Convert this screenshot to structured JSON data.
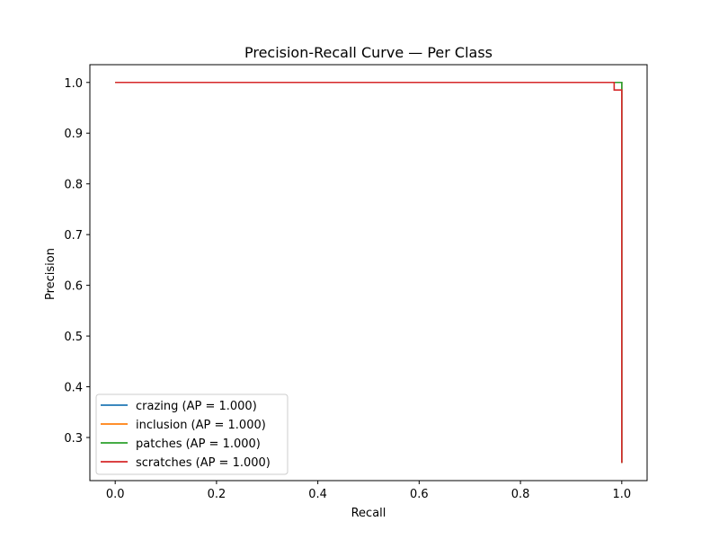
{
  "chart_data": {
    "type": "line",
    "title": "Precision-Recall Curve — Per Class",
    "xlabel": "Recall",
    "ylabel": "Precision",
    "xlim": [
      -0.05,
      1.05
    ],
    "ylim": [
      0.215,
      1.035
    ],
    "xticks": [
      0.0,
      0.2,
      0.4,
      0.6,
      0.8,
      1.0
    ],
    "xtick_labels": [
      "0.0",
      "0.2",
      "0.4",
      "0.6",
      "0.8",
      "1.0"
    ],
    "yticks": [
      0.3,
      0.4,
      0.5,
      0.6,
      0.7,
      0.8,
      0.9,
      1.0
    ],
    "ytick_labels": [
      "0.3",
      "0.4",
      "0.5",
      "0.6",
      "0.7",
      "0.8",
      "0.9",
      "1.0"
    ],
    "grid": false,
    "legend_position": "lower-left",
    "series": [
      {
        "name": "crazing (AP = 1.000)",
        "color": "#1f77b4",
        "x": [
          0.0,
          1.0,
          1.0
        ],
        "y": [
          1.0,
          1.0,
          0.25
        ]
      },
      {
        "name": "inclusion (AP = 1.000)",
        "color": "#ff7f0e",
        "x": [
          0.0,
          1.0,
          1.0
        ],
        "y": [
          1.0,
          1.0,
          0.25
        ]
      },
      {
        "name": "patches (AP = 1.000)",
        "color": "#2ca02c",
        "x": [
          0.0,
          1.0,
          1.0
        ],
        "y": [
          1.0,
          1.0,
          0.25
        ]
      },
      {
        "name": "scratches (AP = 1.000)",
        "color": "#d62728",
        "x": [
          0.0,
          0.985,
          0.985,
          1.0,
          1.0
        ],
        "y": [
          1.0,
          1.0,
          0.985,
          0.985,
          0.25
        ]
      }
    ]
  }
}
